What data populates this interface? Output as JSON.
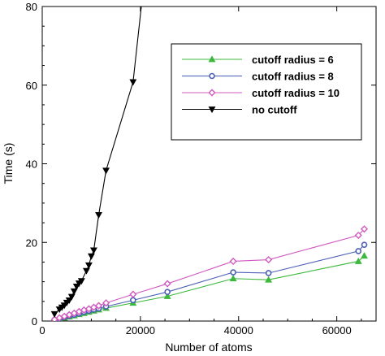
{
  "chart_data": {
    "type": "line",
    "title": "",
    "xlabel": "Number of atoms",
    "ylabel": "Time (s)",
    "xlim": [
      0,
      68000
    ],
    "ylim": [
      0,
      80
    ],
    "xticks": [
      0,
      20000,
      40000,
      60000
    ],
    "yticks": [
      0,
      20,
      40,
      60,
      80
    ],
    "xtick_labels": [
      "0",
      "20000",
      "40000",
      "60000"
    ],
    "ytick_labels": [
      "0",
      "20",
      "40",
      "60",
      "80"
    ],
    "grid": false,
    "legend_position": "top-right",
    "series": [
      {
        "name": "cutoff radius = 6",
        "color": "#3cb83c",
        "marker": "triangle-up",
        "x": [
          2500,
          3500,
          4500,
          5500,
          6500,
          7500,
          8500,
          9500,
          10500,
          11500,
          13000,
          18500,
          25500,
          38900,
          46100,
          64400,
          65600
        ],
        "y": [
          0.2,
          0.5,
          0.8,
          1.1,
          1.4,
          1.7,
          2.0,
          2.3,
          2.6,
          2.9,
          3.3,
          4.6,
          6.3,
          10.8,
          10.5,
          15.2,
          16.6
        ]
      },
      {
        "name": "cutoff radius = 8",
        "color": "#4a5fb5",
        "marker": "circle",
        "x": [
          2500,
          3500,
          4500,
          5500,
          6500,
          7500,
          8500,
          9500,
          10500,
          11500,
          13000,
          18500,
          25500,
          38900,
          46100,
          64400,
          65600
        ],
        "y": [
          0.3,
          0.6,
          1.0,
          1.3,
          1.6,
          1.9,
          2.3,
          2.6,
          2.9,
          3.2,
          3.7,
          5.3,
          7.4,
          12.4,
          12.2,
          17.8,
          19.4
        ]
      },
      {
        "name": "cutoff radius = 10",
        "color": "#d05ac0",
        "marker": "diamond",
        "x": [
          2500,
          3500,
          4500,
          5500,
          6500,
          7500,
          8500,
          9500,
          10500,
          11500,
          13000,
          18500,
          25500,
          38900,
          46100,
          64400,
          65600
        ],
        "y": [
          0.4,
          0.8,
          1.2,
          1.6,
          2.0,
          2.4,
          2.8,
          3.1,
          3.5,
          3.9,
          4.6,
          6.8,
          9.5,
          15.2,
          15.6,
          21.8,
          23.4
        ]
      },
      {
        "name": "no cutoff",
        "color": "#000000",
        "marker": "triangle-down",
        "x": [
          2500,
          3500,
          4000,
          4500,
          5000,
          5500,
          6000,
          6500,
          7000,
          7500,
          8000,
          9000,
          9500,
          10000,
          10500,
          11500,
          13000,
          18500,
          21500
        ],
        "y": [
          1.8,
          3.0,
          3.5,
          4.0,
          4.7,
          5.3,
          6.2,
          7.6,
          8.8,
          9.6,
          10.2,
          12.8,
          14.2,
          16.5,
          18.0,
          27.0,
          38.3,
          60.8,
          95.0
        ]
      }
    ]
  }
}
